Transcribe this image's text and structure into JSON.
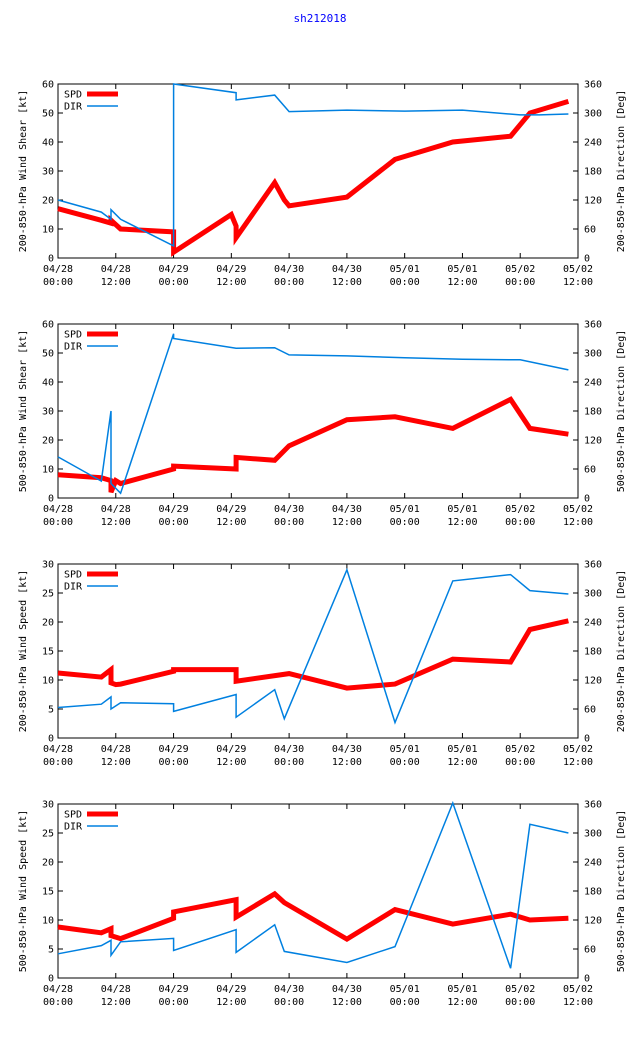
{
  "page_title": "sh212018",
  "title_color": "#0000ff",
  "spd_color": "#ff0000",
  "dir_color": "#0080e0",
  "chart_data": [
    {
      "type": "line",
      "ylabel_left": "200-850-hPa Wind Shear [kt]",
      "ylabel_right": "200-850-hPa Direction [Deg]",
      "ylim_left": [
        0,
        60
      ],
      "yticks_left": [
        0,
        10,
        20,
        30,
        40,
        50,
        60
      ],
      "ylim_right": [
        0,
        360
      ],
      "yticks_right": [
        0,
        60,
        120,
        180,
        240,
        300,
        360
      ],
      "xlim": [
        0,
        108
      ],
      "xticks": [
        0,
        12,
        24,
        36,
        48,
        60,
        72,
        84,
        96,
        108
      ],
      "xtick_labels": [
        [
          "04/28",
          "00:00"
        ],
        [
          "04/28",
          "12:00"
        ],
        [
          "04/29",
          "00:00"
        ],
        [
          "04/29",
          "12:00"
        ],
        [
          "04/30",
          "00:00"
        ],
        [
          "04/30",
          "12:00"
        ],
        [
          "05/01",
          "00:00"
        ],
        [
          "05/01",
          "12:00"
        ],
        [
          "05/02",
          "00:00"
        ],
        [
          "05/02",
          "12:00"
        ]
      ],
      "series": [
        {
          "name": "SPD",
          "axis": "left",
          "x": [
            0,
            9,
            11,
            11,
            13,
            24,
            24,
            36,
            37,
            37,
            45,
            47,
            48,
            60,
            70,
            82,
            94,
            98,
            106
          ],
          "y": [
            17,
            13,
            12,
            13,
            10,
            9,
            2,
            15,
            11,
            7,
            26,
            20,
            18,
            21,
            34,
            40,
            42,
            50,
            54
          ]
        },
        {
          "name": "DIR",
          "axis": "right",
          "x": [
            0,
            9,
            11,
            11,
            13,
            24,
            24,
            37,
            37,
            45,
            48,
            60,
            72,
            84,
            96,
            100,
            106
          ],
          "y": [
            120,
            95,
            80,
            100,
            80,
            25,
            360,
            342,
            327,
            337,
            303,
            306,
            304,
            306,
            296,
            296,
            298
          ]
        }
      ]
    },
    {
      "type": "line",
      "ylabel_left": "500-850-hPa Wind Shear [kt]",
      "ylabel_right": "500-850-hPa Direction [Deg]",
      "ylim_left": [
        0,
        60
      ],
      "yticks_left": [
        0,
        10,
        20,
        30,
        40,
        50,
        60
      ],
      "ylim_right": [
        0,
        360
      ],
      "yticks_right": [
        0,
        60,
        120,
        180,
        240,
        300,
        360
      ],
      "xlim": [
        0,
        108
      ],
      "xticks": [
        0,
        12,
        24,
        36,
        48,
        60,
        72,
        84,
        96,
        108
      ],
      "xtick_labels": [
        [
          "04/28",
          "00:00"
        ],
        [
          "04/28",
          "12:00"
        ],
        [
          "04/29",
          "00:00"
        ],
        [
          "04/29",
          "12:00"
        ],
        [
          "04/30",
          "00:00"
        ],
        [
          "04/30",
          "12:00"
        ],
        [
          "05/01",
          "00:00"
        ],
        [
          "05/01",
          "12:00"
        ],
        [
          "05/02",
          "00:00"
        ],
        [
          "05/02",
          "12:00"
        ]
      ],
      "series": [
        {
          "name": "SPD",
          "axis": "left",
          "x": [
            0,
            9,
            11,
            11,
            12,
            13,
            24,
            24,
            37,
            37,
            45,
            48,
            60,
            70,
            82,
            94,
            98,
            106
          ],
          "y": [
            8,
            7,
            6,
            2,
            6,
            5,
            10,
            11,
            10,
            14,
            13,
            18,
            27,
            28,
            24,
            34,
            24,
            22
          ]
        },
        {
          "name": "DIR",
          "axis": "right",
          "x": [
            0,
            9,
            11,
            11,
            13,
            24,
            24,
            37,
            45,
            48,
            60,
            72,
            84,
            96,
            106
          ],
          "y": [
            85,
            35,
            180,
            30,
            10,
            340,
            330,
            310,
            311,
            296,
            294,
            290,
            287,
            286,
            265
          ]
        }
      ]
    },
    {
      "type": "line",
      "ylabel_left": "200-850-hPa Wind Speed [kt]",
      "ylabel_right": "200-850-hPa Direction [Deg]",
      "ylim_left": [
        0,
        30
      ],
      "yticks_left": [
        0,
        5,
        10,
        15,
        20,
        25,
        30
      ],
      "ylim_right": [
        0,
        360
      ],
      "yticks_right": [
        0,
        60,
        120,
        180,
        240,
        300,
        360
      ],
      "xlim": [
        0,
        108
      ],
      "xticks": [
        0,
        12,
        24,
        36,
        48,
        60,
        72,
        84,
        96,
        108
      ],
      "xtick_labels": [
        [
          "04/28",
          "00:00"
        ],
        [
          "04/28",
          "12:00"
        ],
        [
          "04/29",
          "00:00"
        ],
        [
          "04/29",
          "12:00"
        ],
        [
          "04/30",
          "00:00"
        ],
        [
          "04/30",
          "12:00"
        ],
        [
          "05/01",
          "00:00"
        ],
        [
          "05/01",
          "12:00"
        ],
        [
          "05/02",
          "00:00"
        ],
        [
          "05/02",
          "12:00"
        ]
      ],
      "series": [
        {
          "name": "SPD",
          "axis": "left",
          "x": [
            0,
            9,
            11,
            11,
            12,
            13,
            24,
            24,
            37,
            37,
            48,
            60,
            70,
            82,
            94,
            98,
            106
          ],
          "y": [
            11.2,
            10.5,
            11.8,
            9.5,
            9.2,
            9.3,
            11.5,
            11.8,
            11.8,
            9.8,
            11.1,
            8.6,
            9.3,
            13.6,
            13.1,
            18.7,
            20.2
          ]
        },
        {
          "name": "DIR",
          "axis": "right",
          "x": [
            0,
            9,
            11,
            11,
            13,
            24,
            24,
            37,
            37,
            45,
            47,
            60,
            70,
            82,
            94,
            98,
            106
          ],
          "y": [
            63,
            70,
            85,
            60,
            73,
            71,
            55,
            90,
            43,
            100,
            40,
            348,
            32,
            325,
            338,
            305,
            298
          ]
        }
      ]
    },
    {
      "type": "line",
      "ylabel_left": "500-850-hPa Wind Speed [kt]",
      "ylabel_right": "500-850-hPa Direction [Deg]",
      "ylim_left": [
        0,
        30
      ],
      "yticks_left": [
        0,
        5,
        10,
        15,
        20,
        25,
        30
      ],
      "ylim_right": [
        0,
        360
      ],
      "yticks_right": [
        0,
        60,
        120,
        180,
        240,
        300,
        360
      ],
      "xlim": [
        0,
        108
      ],
      "xticks": [
        0,
        12,
        24,
        36,
        48,
        60,
        72,
        84,
        96,
        108
      ],
      "xtick_labels": [
        [
          "04/28",
          "00:00"
        ],
        [
          "04/28",
          "12:00"
        ],
        [
          "04/29",
          "00:00"
        ],
        [
          "04/29",
          "12:00"
        ],
        [
          "04/30",
          "00:00"
        ],
        [
          "04/30",
          "12:00"
        ],
        [
          "05/01",
          "00:00"
        ],
        [
          "05/01",
          "12:00"
        ],
        [
          "05/02",
          "00:00"
        ],
        [
          "05/02",
          "12:00"
        ]
      ],
      "series": [
        {
          "name": "SPD",
          "axis": "left",
          "x": [
            0,
            9,
            11,
            11,
            13,
            24,
            24,
            37,
            37,
            45,
            47,
            60,
            70,
            82,
            94,
            98,
            106
          ],
          "y": [
            8.8,
            7.8,
            8.5,
            7.3,
            6.8,
            10.3,
            11.4,
            13.5,
            10.5,
            14.5,
            13.0,
            6.7,
            11.8,
            9.3,
            11.0,
            10.0,
            10.3
          ]
        },
        {
          "name": "DIR",
          "axis": "right",
          "x": [
            0,
            9,
            11,
            11,
            13,
            24,
            24,
            37,
            37,
            45,
            47,
            60,
            70,
            82,
            94,
            98,
            106
          ],
          "y": [
            50,
            67,
            78,
            47,
            75,
            82,
            57,
            100,
            53,
            110,
            55,
            32,
            65,
            362,
            20,
            318,
            300
          ]
        }
      ]
    }
  ]
}
